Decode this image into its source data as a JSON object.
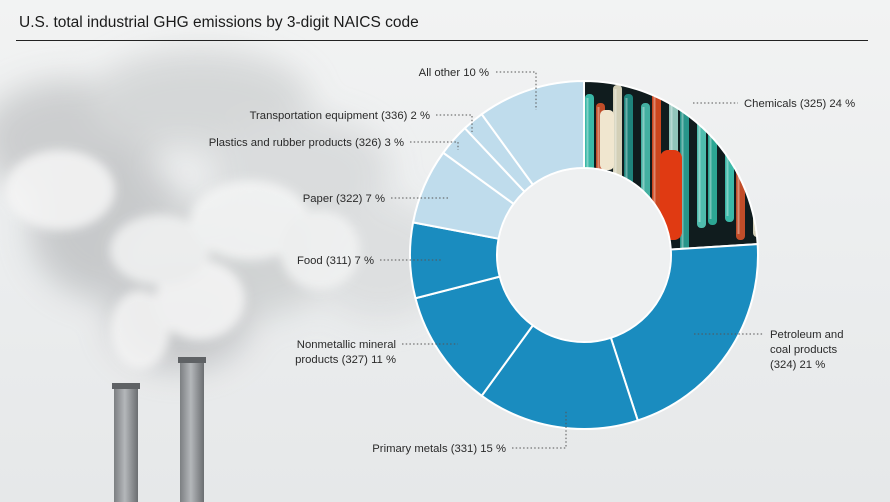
{
  "chart_data": {
    "type": "pie",
    "style": "donut",
    "title": "U.S. total industrial GHG emissions by 3-digit NAICS code",
    "unit": "%",
    "slices": [
      {
        "lines": [
          "Chemicals (325) 24 %"
        ],
        "value": 24,
        "color": "#e6e9eb"
      },
      {
        "lines": [
          "Petroleum and",
          "coal products",
          "(324) 21 %"
        ],
        "value": 21,
        "color": "#1a8cbf"
      },
      {
        "lines": [
          "Primary metals (331) 15 %"
        ],
        "value": 15,
        "color": "#1a8cbf"
      },
      {
        "lines": [
          "Nonmetallic mineral",
          "products (327) 11 %"
        ],
        "value": 11,
        "color": "#1a8cbf"
      },
      {
        "lines": [
          "Food (311) 7 %"
        ],
        "value": 7,
        "color": "#1a8cbf"
      },
      {
        "lines": [
          "Paper (322) 7 %"
        ],
        "value": 7,
        "color": "#bfdcec"
      },
      {
        "lines": [
          "Plastics and rubber products (326) 3 %"
        ],
        "value": 3,
        "color": "#bfdcec"
      },
      {
        "lines": [
          "Transportation equipment (336) 2 %"
        ],
        "value": 2,
        "color": "#bfdcec"
      },
      {
        "lines": [
          "All other 10 %"
        ],
        "value": 10,
        "color": "#bfdcec"
      }
    ]
  }
}
